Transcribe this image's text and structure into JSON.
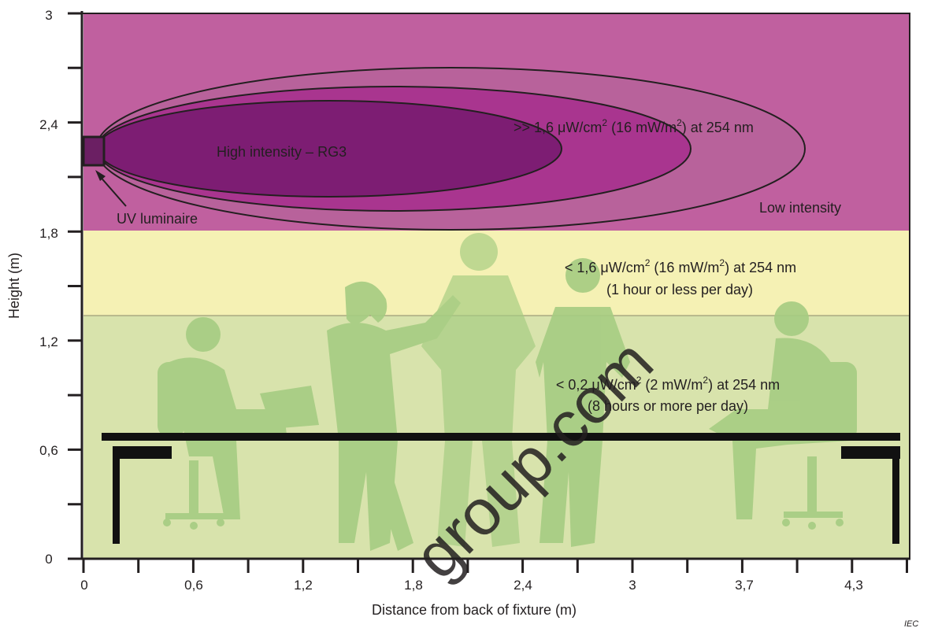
{
  "figure": {
    "x_axis_label": "Distance from back of fixture (m)",
    "y_axis_label": "Height  (m)",
    "x_tick_labels": [
      "0",
      "0,6",
      "1,2",
      "1,8",
      "2,4",
      "3",
      "3,7",
      "4,3"
    ],
    "y_tick_labels": [
      "0",
      "0,6",
      "1,2",
      "1,8",
      "2,4",
      "3"
    ],
    "credit": "IEC",
    "watermark": "group.com"
  },
  "zones": {
    "upper": {
      "color": "#c0609f",
      "inner_label": "High intensity – RG3",
      "mid_label_prefix": ">> 1,6 μW/cm",
      "mid_label_suffix": " (16 mW/m",
      "mid_label_end": ") at 254 nm",
      "outer_label": "Low intensity",
      "luminaire_label": "UV luminaire"
    },
    "caution": {
      "color": "#f5f1b4",
      "line1_prefix": "< 1,6 μW/cm",
      "line1_suffix": " (16 mW/m",
      "line1_end": ") at 254 nm",
      "line2": "(1 hour or less per day)"
    },
    "safe": {
      "color": "#d8e3ac",
      "line1_prefix": "< 0,2 μW/cm",
      "line1_suffix": " (2 mW/m",
      "line1_end": ") at 254 nm",
      "line2": "(8 hours or more per day)"
    },
    "superscript": "2"
  },
  "colors": {
    "ellipse_outer": "#b8629b",
    "ellipse_mid": "#a9358f",
    "ellipse_inner": "#7d1d73",
    "silhouette": "#a6cc82"
  }
}
